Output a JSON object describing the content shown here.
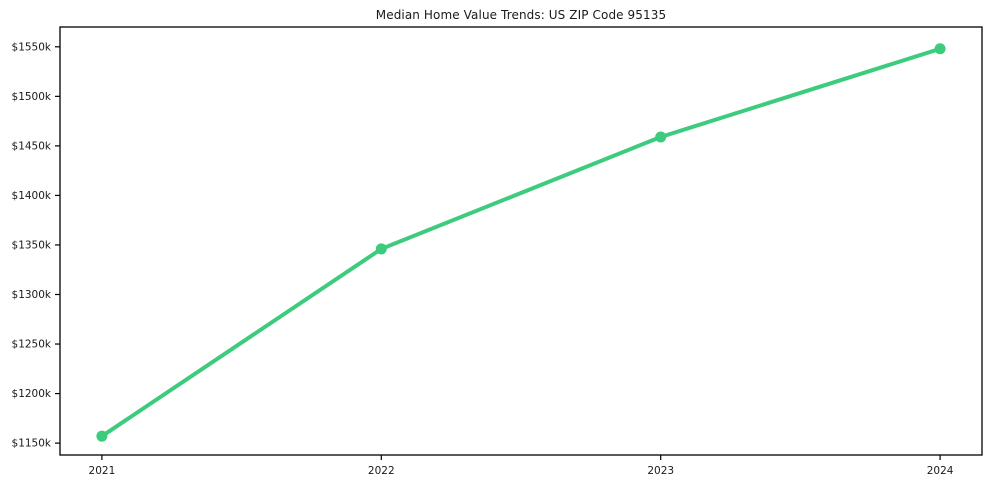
{
  "chart_data": {
    "type": "line",
    "title": "Median Home Value Trends: US ZIP Code 95135",
    "x": [
      2021,
      2022,
      2023,
      2024
    ],
    "x_tick_labels": [
      "2021",
      "2022",
      "2023",
      "2024"
    ],
    "series": [
      {
        "values_k_usd": [
          1157,
          1346,
          1459,
          1548
        ]
      }
    ],
    "y_ticks_k": [
      1150,
      1200,
      1250,
      1300,
      1350,
      1400,
      1450,
      1500,
      1550
    ],
    "y_tick_labels": [
      "$1150k",
      "$1200k",
      "$1250k",
      "$1300k",
      "$1350k",
      "$1400k",
      "$1450k",
      "$1500k",
      "$1550k"
    ],
    "ylim_k": [
      1138,
      1570
    ],
    "xlim": [
      2020.85,
      2024.15
    ],
    "grid": false,
    "legend": false,
    "colors": {
      "line": "#3dcb7d",
      "axis": "#000000",
      "text": "#1a1a1a",
      "background": "#ffffff"
    }
  }
}
